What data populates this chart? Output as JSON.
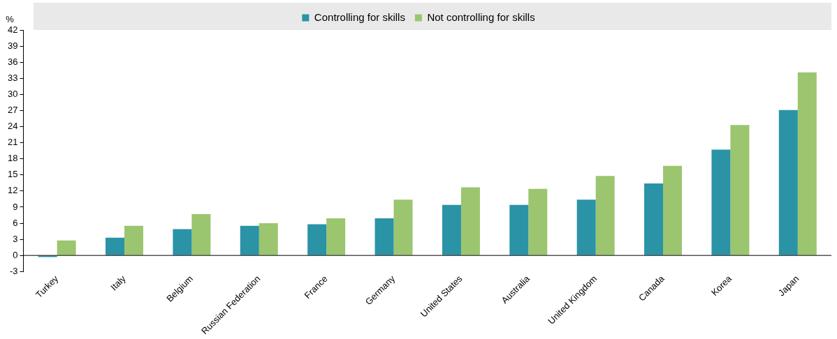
{
  "chart_data": {
    "type": "bar",
    "ylabel": "%",
    "categories": [
      "Turkey",
      "Italy",
      "Belgium",
      "Russian Federation",
      "France",
      "Germany",
      "United States",
      "Australia",
      "United Kingdom",
      "Canada",
      "Korea",
      "Japan"
    ],
    "series": [
      {
        "name": "Controlling for skills",
        "color": "#2a93a6",
        "values": [
          -0.3,
          3.3,
          4.9,
          5.5,
          5.8,
          6.9,
          9.4,
          9.4,
          10.4,
          13.4,
          19.7,
          27.1
        ]
      },
      {
        "name": "Not controlling for skills",
        "color": "#9bc56f",
        "values": [
          2.8,
          5.5,
          7.7,
          6.0,
          6.9,
          10.4,
          12.7,
          12.4,
          14.8,
          16.7,
          24.3,
          34.1
        ]
      }
    ],
    "ylim": [
      -3,
      42
    ],
    "yticks": [
      -3,
      0,
      3,
      6,
      9,
      12,
      15,
      18,
      21,
      24,
      27,
      30,
      33,
      36,
      39,
      42
    ],
    "grid": false,
    "legend": "top"
  }
}
